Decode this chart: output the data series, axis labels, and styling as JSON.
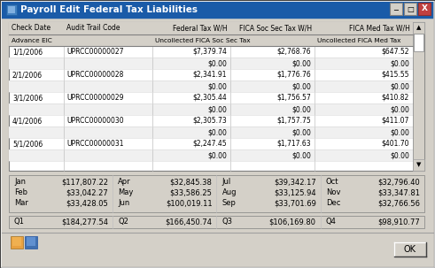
{
  "title": "Payroll Edit Federal Tax Liabilities",
  "window_bg": "#d4d0c8",
  "table_bg": "#ffffff",
  "title_bar_color": "#1a5ba8",
  "headers": [
    "Check Date",
    "Audit Trail Code",
    "Federal Tax W/H",
    "FICA Soc Sec Tax W/H",
    "FICA Med Tax W/H"
  ],
  "subheaders": [
    "Advance EIC",
    "",
    "Uncollected FICA Soc Sec Tax",
    "",
    "Uncollected FICA Med Tax"
  ],
  "rows": [
    [
      "1/1/2006",
      "UPRCC00000027",
      "$7,379.74",
      "$2,768.76",
      "$647.52"
    ],
    [
      "",
      "",
      "$0.00",
      "$0.00",
      "$0.00"
    ],
    [
      "2/1/2006",
      "UPRCC00000028",
      "$2,341.91",
      "$1,776.76",
      "$415.55"
    ],
    [
      "",
      "",
      "$0.00",
      "$0.00",
      "$0.00"
    ],
    [
      "3/1/2006",
      "UPRCC00000029",
      "$2,305.44",
      "$1,756.57",
      "$410.82"
    ],
    [
      "",
      "",
      "$0.00",
      "$0.00",
      "$0.00"
    ],
    [
      "4/1/2006",
      "UPRCC00000030",
      "$2,305.73",
      "$1,757.75",
      "$411.07"
    ],
    [
      "",
      "",
      "$0.00",
      "$0.00",
      "$0.00"
    ],
    [
      "5/1/2006",
      "UPRCC00000031",
      "$2,247.45",
      "$1,717.63",
      "$401.70"
    ],
    [
      "",
      "",
      "$0.00",
      "$0.00",
      "$0.00"
    ]
  ],
  "monthly_data": [
    {
      "month": "Jan",
      "value": "$117,807.22"
    },
    {
      "month": "Feb",
      "value": "$33,042.27"
    },
    {
      "month": "Mar",
      "value": "$33,428.05"
    },
    {
      "month": "Apr",
      "value": "$32,845.38"
    },
    {
      "month": "May",
      "value": "$33,586.25"
    },
    {
      "month": "Jun",
      "value": "$100,019.11"
    },
    {
      "month": "Jul",
      "value": "$39,342.17"
    },
    {
      "month": "Aug",
      "value": "$33,125.94"
    },
    {
      "month": "Sep",
      "value": "$33,701.69"
    },
    {
      "month": "Oct",
      "value": "$32,796.40"
    },
    {
      "month": "Nov",
      "value": "$33,347.81"
    },
    {
      "month": "Dec",
      "value": "$32,766.56"
    }
  ],
  "quarterly_data": [
    {
      "quarter": "Q1",
      "value": "$184,277.54"
    },
    {
      "quarter": "Q2",
      "value": "$166,450.74"
    },
    {
      "quarter": "Q3",
      "value": "$106,169.80"
    },
    {
      "quarter": "Q4",
      "value": "$98,910.77"
    }
  ]
}
